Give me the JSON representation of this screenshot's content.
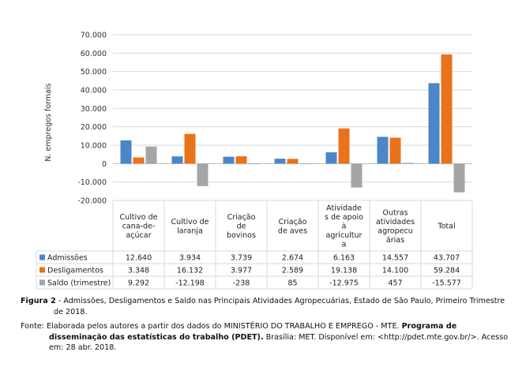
{
  "chart_data": {
    "type": "bar",
    "ylabel": "N. empregos formais",
    "ylim": [
      -20000,
      70000
    ],
    "yticks": [
      "70.000",
      "60.000",
      "50.000",
      "40.000",
      "30.000",
      "20.000",
      "10.000",
      "0",
      "-10.000",
      "-20.000"
    ],
    "ytick_values": [
      70000,
      60000,
      50000,
      40000,
      30000,
      20000,
      10000,
      0,
      -10000,
      -20000
    ],
    "grid": true,
    "categories": [
      [
        "Cultivo de",
        "cana-de-",
        "açúcar"
      ],
      [
        "Cultivo de",
        "laranja"
      ],
      [
        "Criação",
        "de",
        "bovinos"
      ],
      [
        "Criação",
        "de aves"
      ],
      [
        "Atividade",
        "s de apoio",
        "à",
        "agricultur",
        "a"
      ],
      [
        "Outras",
        "atividades",
        "agropecu",
        "árias"
      ],
      [
        "Total"
      ]
    ],
    "series": [
      {
        "name": "Admissões",
        "color": "#4A86C8",
        "values": [
          12640,
          3934,
          3739,
          2674,
          6163,
          14557,
          43707
        ],
        "labels": [
          "12.640",
          "3.934",
          "3.739",
          "2.674",
          "6.163",
          "14.557",
          "43.707"
        ]
      },
      {
        "name": "Desligamentos",
        "color": "#E8731A",
        "values": [
          3348,
          16132,
          3977,
          2589,
          19138,
          14100,
          59284
        ],
        "labels": [
          "3.348",
          "16.132",
          "3.977",
          "2.589",
          "19.138",
          "14.100",
          "59.284"
        ]
      },
      {
        "name": "Saldo (trimestre)",
        "color": "#A5A5A5",
        "values": [
          9292,
          -12198,
          -238,
          85,
          -12975,
          457,
          -15577
        ],
        "labels": [
          "9.292",
          "-12.198",
          "-238",
          "85",
          "-12.975",
          "457",
          "-15.577"
        ]
      }
    ]
  },
  "caption": {
    "figure_label": "Figura 2",
    "figure_text": " - Admissões, Desligamentos e Saldo nas Principais Atividades Agropecuárias, Estado de São Paulo, Primeiro Trimestre de 2018.",
    "source_prefix": "Fonte: Elaborada pelos autores a partir dos dados do MINISTÉRIO DO TRABALHO E EMPREGO - MTE. ",
    "source_title": "Programa de disseminação das estatísticas do trabalho (PDET).",
    "source_suffix": " Brasília: MET. Disponível em: <http://pdet.mte.gov.br/>. Acesso em: 28 abr. 2018."
  }
}
